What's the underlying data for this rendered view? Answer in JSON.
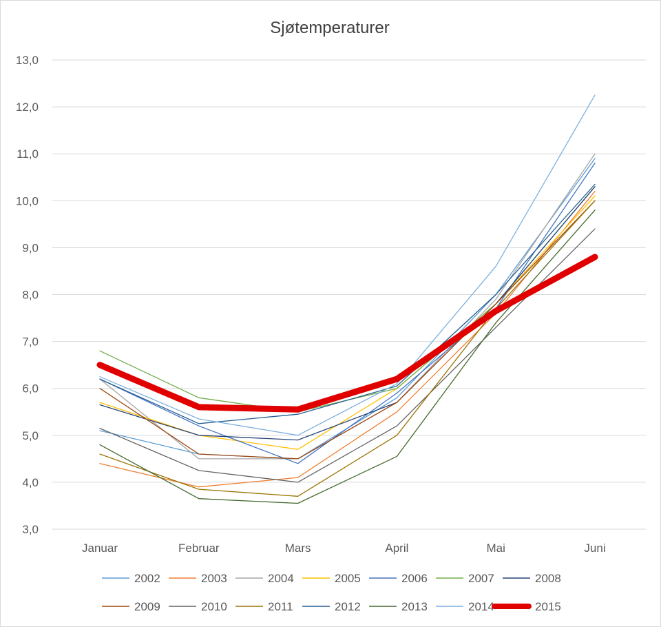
{
  "chart_data": {
    "type": "line",
    "title": "Sjøtemperaturer",
    "xlabel": "",
    "ylabel": "",
    "categories": [
      "Januar",
      "Februar",
      "Mars",
      "April",
      "Mai",
      "Juni"
    ],
    "ylim": [
      3.0,
      13.0
    ],
    "ytick_step": 1.0,
    "ytick_labels": [
      "3,0",
      "4,0",
      "5,0",
      "6,0",
      "7,0",
      "8,0",
      "9,0",
      "10,0",
      "11,0",
      "12,0",
      "13,0"
    ],
    "grid": true,
    "legend_position": "bottom",
    "series": [
      {
        "name": "2002",
        "color": "#5B9BD5",
        "values": [
          5.1,
          4.6,
          4.5,
          5.8,
          8.0,
          10.9
        ]
      },
      {
        "name": "2003",
        "color": "#ED7D31",
        "values": [
          4.4,
          3.9,
          4.1,
          5.5,
          7.6,
          10.2
        ]
      },
      {
        "name": "2004",
        "color": "#A5A5A5",
        "values": [
          6.2,
          4.5,
          4.5,
          5.7,
          7.9,
          11.0
        ]
      },
      {
        "name": "2005",
        "color": "#FFC000",
        "values": [
          5.7,
          5.0,
          4.7,
          6.0,
          7.8,
          10.1
        ]
      },
      {
        "name": "2006",
        "color": "#4472C4",
        "values": [
          6.2,
          5.2,
          4.4,
          5.9,
          7.7,
          10.8
        ]
      },
      {
        "name": "2007",
        "color": "#70AD47",
        "values": [
          6.8,
          5.8,
          5.5,
          6.0,
          7.8,
          10.3
        ]
      },
      {
        "name": "2008",
        "color": "#264478",
        "values": [
          5.65,
          5.0,
          4.9,
          5.7,
          7.8,
          10.3
        ]
      },
      {
        "name": "2009",
        "color": "#9E480E",
        "values": [
          6.0,
          4.6,
          4.5,
          5.7,
          7.8,
          10.0
        ]
      },
      {
        "name": "2010",
        "color": "#636363",
        "values": [
          5.15,
          4.25,
          4.0,
          5.2,
          7.3,
          9.4
        ]
      },
      {
        "name": "2011",
        "color": "#997300",
        "values": [
          4.6,
          3.85,
          3.7,
          5.0,
          7.7,
          10.0
        ]
      },
      {
        "name": "2012",
        "color": "#255E91",
        "values": [
          6.2,
          5.25,
          5.45,
          6.05,
          8.0,
          10.35
        ]
      },
      {
        "name": "2013",
        "color": "#43682B",
        "values": [
          4.8,
          3.65,
          3.55,
          4.55,
          7.4,
          9.8
        ]
      },
      {
        "name": "2014",
        "color": "#7CAFDD",
        "values": [
          6.25,
          5.35,
          5.0,
          6.1,
          8.6,
          12.25
        ]
      },
      {
        "name": "2015",
        "color": "#E00000",
        "values": [
          6.5,
          5.6,
          5.55,
          6.2,
          7.65,
          8.8
        ]
      }
    ]
  }
}
